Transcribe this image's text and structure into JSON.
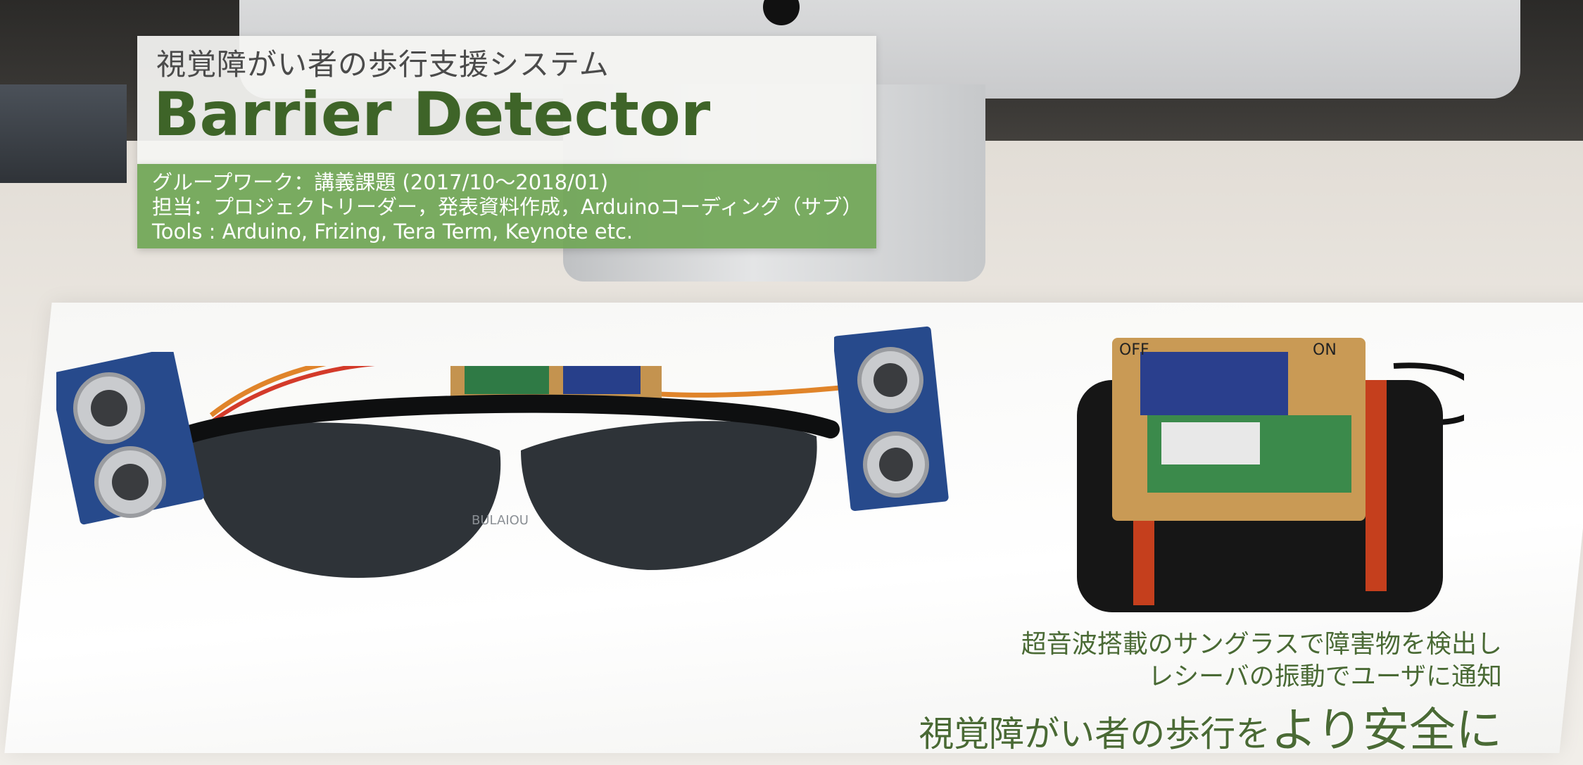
{
  "header": {
    "subtitle": "視覚障がい者の歩行支援システム",
    "title": "Barrier Detector"
  },
  "info": {
    "line1": "グループワーク：講義課題 (2017/10〜2018/01)",
    "line2": "担当：プロジェクトリーダー，発表資料作成，Arduinoコーディング（サブ）",
    "line3": "Tools : Arduino, Frizing, Tera Term, Keynote etc."
  },
  "caption": {
    "line1": "超音波搭載のサングラスで障害物を検出し",
    "line2": "レシーバの振動でユーザに通知",
    "tagline_prefix": "視覚障がい者の歩行を",
    "tagline_emphasis": "より安全に"
  },
  "photo": {
    "board_labels": [
      "OFF",
      "ON"
    ],
    "glasses_brand": "BULAIOU"
  },
  "colors": {
    "title_green": "#3e6428",
    "info_panel_green": "#70a656",
    "caption_green": "#4a6a35"
  }
}
